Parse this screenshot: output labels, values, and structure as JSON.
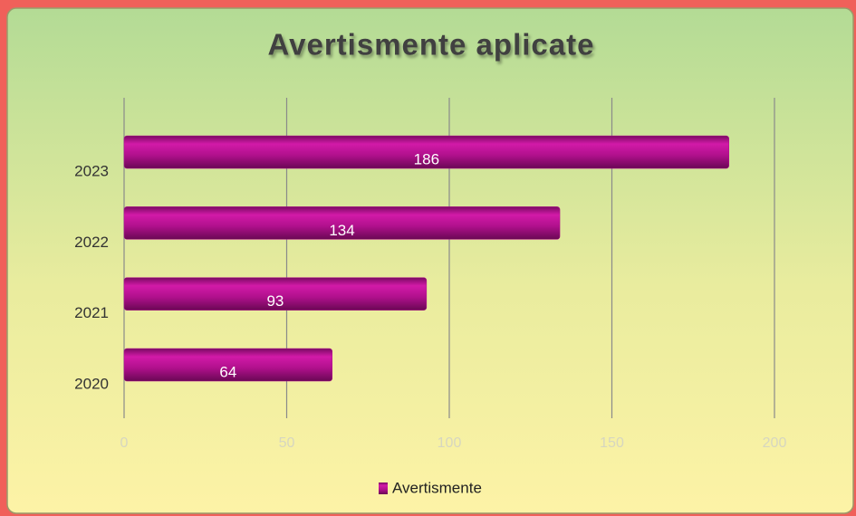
{
  "chart_data": {
    "type": "bar",
    "orientation": "horizontal",
    "title": "Avertismente aplicate",
    "categories": [
      "2020",
      "2021",
      "2022",
      "2023"
    ],
    "series": [
      {
        "name": "Avertismente",
        "color": "#b0108c",
        "values": [
          64,
          93,
          134,
          186
        ]
      }
    ],
    "xlim": [
      0,
      200
    ],
    "xticks": [
      0,
      50,
      100,
      150,
      200
    ],
    "grid": true,
    "legend": "bottom"
  }
}
